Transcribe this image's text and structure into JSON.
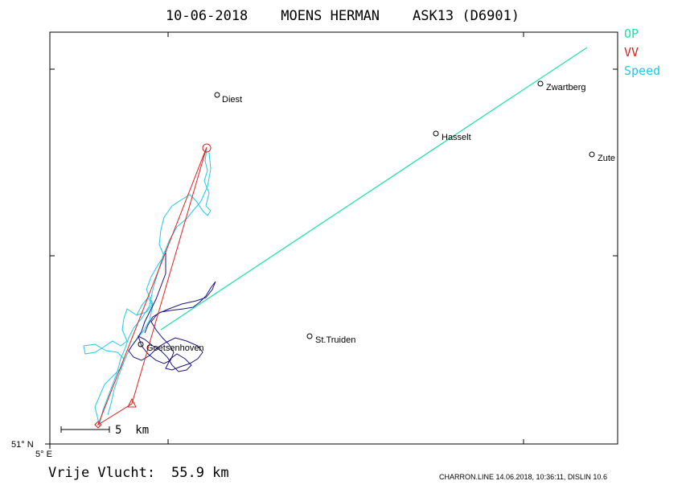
{
  "header": {
    "title": "10-06-2018    MOENS HERMAN    ASK13 (D6901)"
  },
  "legend": [
    {
      "label": "OP",
      "color": "#19e3a0"
    },
    {
      "label": "VV",
      "color": "#e02020"
    },
    {
      "label": "Speed",
      "color": "#20c8e8"
    }
  ],
  "axes": {
    "lat_label": "51° N",
    "lon_label": "5° E"
  },
  "scale": {
    "label": "5  km"
  },
  "cities": [
    {
      "name": "Diest"
    },
    {
      "name": "Zwartberg"
    },
    {
      "name": "Hasselt"
    },
    {
      "name": "Zute"
    },
    {
      "name": "St.Truiden"
    },
    {
      "name": "Goetsenhoven"
    }
  ],
  "footer": {
    "distance_label": "Vrije Vlucht:",
    "distance_value": "55.9 km",
    "credits": "CHARRON.LINE 14.06.2018, 10:36:11, DISLIN 10.6"
  },
  "colors": {
    "op_line": "#19e3a0",
    "vv_line": "#e02020",
    "speed_track": "#20c8e8",
    "slow_track": "#1a1580",
    "frame": "#000000"
  }
}
